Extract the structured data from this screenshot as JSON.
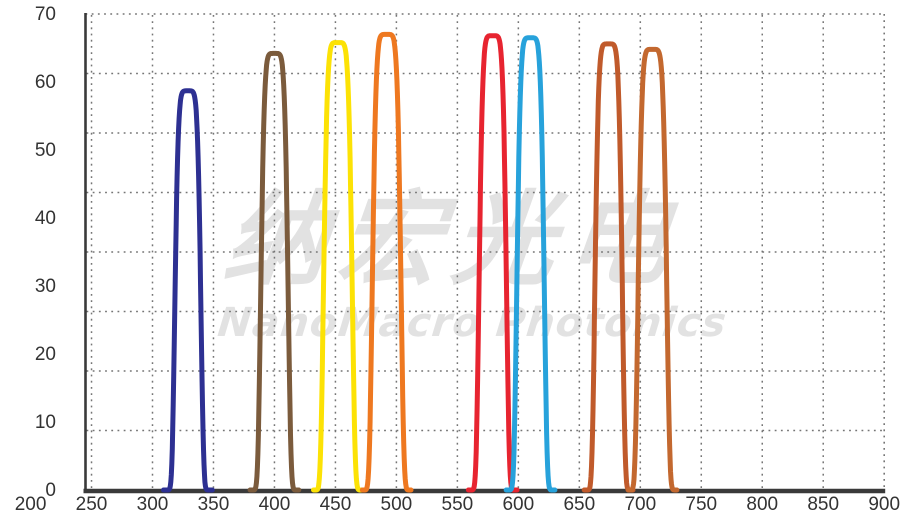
{
  "watermark": {
    "cn": "纳宏光电",
    "en": "NanoMacro Photonics",
    "color": "#e2e2e2"
  },
  "chart_data": {
    "type": "line",
    "title": "",
    "xlabel": "",
    "ylabel": "",
    "xlim": [
      200,
      900
    ],
    "ylim": [
      0,
      70
    ],
    "x_ticks": [
      200,
      250,
      300,
      350,
      400,
      450,
      500,
      550,
      600,
      650,
      700,
      750,
      800,
      850,
      900
    ],
    "y_ticks": [
      0,
      10,
      20,
      30,
      40,
      50,
      60,
      70
    ],
    "grid": "dotted",
    "legend": "none",
    "series": [
      {
        "center_nm": 329,
        "peak_value": 58.7,
        "fwhm_nm": 21,
        "color": "#2d3092"
      },
      {
        "center_nm": 400,
        "peak_value": 64.2,
        "fwhm_nm": 22,
        "color": "#7b5b3c"
      },
      {
        "center_nm": 452,
        "peak_value": 65.8,
        "fwhm_nm": 23,
        "color": "#fce205"
      },
      {
        "center_nm": 492,
        "peak_value": 67.0,
        "fwhm_nm": 23,
        "color": "#ee7820"
      },
      {
        "center_nm": 579,
        "peak_value": 66.8,
        "fwhm_nm": 22,
        "color": "#e72430"
      },
      {
        "center_nm": 610,
        "peak_value": 66.5,
        "fwhm_nm": 22,
        "color": "#27a2db"
      },
      {
        "center_nm": 674,
        "peak_value": 65.6,
        "fwhm_nm": 22,
        "color": "#c05a2b"
      },
      {
        "center_nm": 710,
        "peak_value": 64.8,
        "fwhm_nm": 23,
        "color": "#c3682f"
      }
    ],
    "style": {
      "axis_color": "#3a3a3a",
      "grid_color": "#757575",
      "tick_label_color": "#333333",
      "curve_stroke_px": 5
    }
  }
}
